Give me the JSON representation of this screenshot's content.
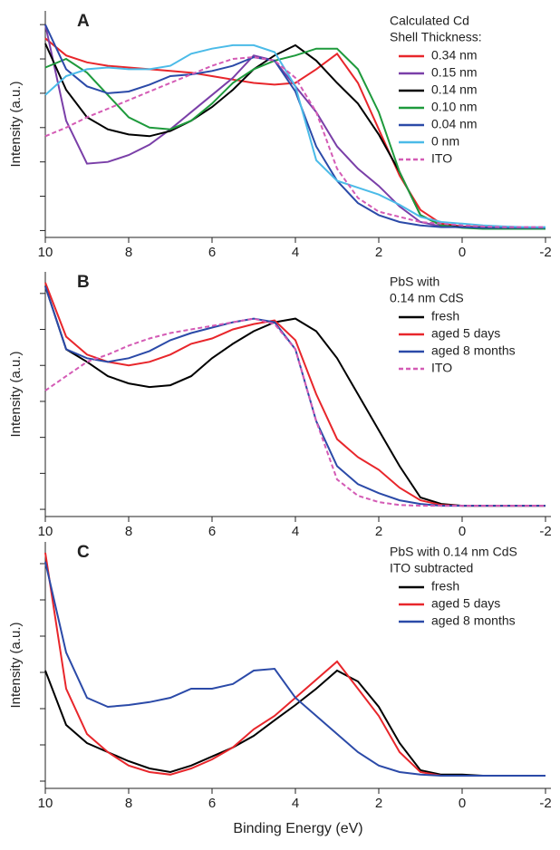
{
  "chart_data": [
    {
      "type": "line",
      "title": "A",
      "y_label": "Intensity (a.u.)",
      "legend_title": [
        "Calculated Cd",
        "Shell  Thickness:"
      ],
      "x": [
        10,
        9.5,
        9,
        8.5,
        8,
        7.5,
        7,
        6.5,
        6,
        5.5,
        5,
        4.5,
        4,
        3.5,
        3,
        2.5,
        2,
        1.5,
        1,
        0.5,
        0,
        -0.5,
        -1,
        -1.5,
        -2
      ],
      "xlim": [
        10,
        -2
      ],
      "xticks": [
        10,
        8,
        6,
        4,
        2,
        0,
        -2
      ],
      "ylim": [
        -0.2,
        6.4
      ],
      "yticks": [
        0,
        1,
        2,
        3,
        4,
        5,
        6
      ],
      "ytick_labels": false,
      "series": [
        {
          "name": "0.34 nm",
          "color": "#e8262b",
          "values": [
            5.6,
            5.1,
            4.9,
            4.8,
            4.75,
            4.7,
            4.65,
            4.6,
            4.5,
            4.4,
            4.3,
            4.25,
            4.3,
            4.7,
            5.15,
            4.3,
            2.95,
            1.6,
            0.6,
            0.2,
            0.12,
            0.1,
            0.08,
            0.08,
            0.08
          ]
        },
        {
          "name": "0.15 nm",
          "color": "#7a3fa8",
          "values": [
            6.0,
            3.2,
            1.95,
            2.0,
            2.2,
            2.5,
            2.95,
            3.45,
            3.95,
            4.45,
            5.1,
            4.95,
            4.2,
            3.45,
            2.45,
            1.8,
            1.3,
            0.7,
            0.25,
            0.12,
            0.1,
            0.08,
            0.08,
            0.08,
            0.08
          ]
        },
        {
          "name": "0.14 nm",
          "color": "#000000",
          "values": [
            5.45,
            4.1,
            3.3,
            2.95,
            2.8,
            2.75,
            2.9,
            3.2,
            3.6,
            4.1,
            4.7,
            5.1,
            5.4,
            4.95,
            4.3,
            3.7,
            2.8,
            1.7,
            0.45,
            0.15,
            0.1,
            0.08,
            0.08,
            0.08,
            0.08
          ]
        },
        {
          "name": "0.10 nm",
          "color": "#1e9a3c",
          "values": [
            4.75,
            5.0,
            4.6,
            3.95,
            3.3,
            3.0,
            2.95,
            3.2,
            3.7,
            4.3,
            4.7,
            4.95,
            5.1,
            5.3,
            5.3,
            4.7,
            3.45,
            1.7,
            0.45,
            0.15,
            0.08,
            0.05,
            0.05,
            0.05,
            0.05
          ]
        },
        {
          "name": "0.04 nm",
          "color": "#2b4aa8",
          "values": [
            6.0,
            4.7,
            4.2,
            4.0,
            4.05,
            4.25,
            4.5,
            4.55,
            4.65,
            4.8,
            5.05,
            4.95,
            4.05,
            2.45,
            1.45,
            0.8,
            0.45,
            0.25,
            0.15,
            0.1,
            0.1,
            0.08,
            0.08,
            0.08,
            0.08
          ]
        },
        {
          "name": "0 nm",
          "color": "#4bbbe8",
          "values": [
            3.95,
            4.5,
            4.7,
            4.75,
            4.7,
            4.7,
            4.8,
            5.15,
            5.3,
            5.4,
            5.4,
            5.2,
            4.2,
            2.05,
            1.45,
            1.25,
            1.05,
            0.75,
            0.4,
            0.25,
            0.2,
            0.15,
            0.12,
            0.1,
            0.1
          ]
        },
        {
          "name": "ITO",
          "color": "#d45bb5",
          "dash": true,
          "values": [
            2.75,
            3.0,
            3.3,
            3.55,
            3.8,
            4.05,
            4.3,
            4.55,
            4.8,
            5.0,
            5.05,
            4.95,
            4.45,
            3.45,
            1.8,
            0.95,
            0.55,
            0.4,
            0.25,
            0.2,
            0.15,
            0.12,
            0.1,
            0.1,
            0.1
          ]
        }
      ]
    },
    {
      "type": "line",
      "title": "B",
      "y_label": "Intensity (a.u.)",
      "legend_title": [
        "PbS with",
        "0.14 nm CdS"
      ],
      "x": [
        10,
        9.5,
        9,
        8.5,
        8,
        7.5,
        7,
        6.5,
        6,
        5.5,
        5,
        4.5,
        4,
        3.5,
        3,
        2.5,
        2,
        1.5,
        1,
        0.5,
        0,
        -0.5,
        -1,
        -1.5,
        -2
      ],
      "xlim": [
        10,
        -2
      ],
      "xticks": [
        10,
        8,
        6,
        4,
        2,
        0,
        -2
      ],
      "ylim": [
        -0.2,
        6.6
      ],
      "yticks": [
        0,
        1,
        2,
        3,
        4,
        5,
        6
      ],
      "ytick_labels": false,
      "series": [
        {
          "name": "fresh",
          "color": "#000000",
          "values": [
            6.2,
            4.45,
            4.1,
            3.7,
            3.5,
            3.4,
            3.45,
            3.7,
            4.2,
            4.6,
            4.95,
            5.2,
            5.3,
            4.95,
            4.2,
            3.2,
            2.2,
            1.2,
            0.33,
            0.15,
            0.1,
            0.1,
            0.1,
            0.1,
            0.1
          ]
        },
        {
          "name": "aged 5 days",
          "color": "#e8262b",
          "values": [
            6.3,
            4.8,
            4.3,
            4.1,
            4.0,
            4.1,
            4.3,
            4.6,
            4.75,
            5.0,
            5.15,
            5.25,
            4.7,
            3.2,
            1.95,
            1.45,
            1.1,
            0.6,
            0.25,
            0.12,
            0.1,
            0.1,
            0.1,
            0.1,
            0.1
          ]
        },
        {
          "name": "aged 8 months",
          "color": "#2b4aa8",
          "values": [
            6.2,
            4.45,
            4.2,
            4.1,
            4.2,
            4.4,
            4.7,
            4.9,
            5.05,
            5.2,
            5.3,
            5.2,
            4.45,
            2.45,
            1.2,
            0.7,
            0.45,
            0.25,
            0.15,
            0.1,
            0.1,
            0.1,
            0.1,
            0.1,
            0.1
          ]
        },
        {
          "name": "ITO",
          "color": "#d45bb5",
          "dash": true,
          "values": [
            3.3,
            3.7,
            4.1,
            4.3,
            4.55,
            4.75,
            4.9,
            5.0,
            5.1,
            5.2,
            5.3,
            5.15,
            4.45,
            2.45,
            0.83,
            0.38,
            0.2,
            0.12,
            0.1,
            0.1,
            0.1,
            0.1,
            0.1,
            0.1,
            0.1
          ]
        }
      ]
    },
    {
      "type": "line",
      "title": "C",
      "y_label": "Intensity (a.u.)",
      "x_label": "Binding Energy (eV)",
      "legend_title": [
        "PbS with 0.14 nm CdS",
        "ITO subtracted"
      ],
      "x": [
        10,
        9.5,
        9,
        8.5,
        8,
        7.5,
        7,
        6.5,
        6,
        5.5,
        5,
        4.5,
        4,
        3.5,
        3,
        2.5,
        2,
        1.5,
        1,
        0.5,
        0,
        -0.5,
        -1,
        -1.5,
        -2
      ],
      "xlim": [
        10,
        -2
      ],
      "xticks": [
        10,
        8,
        6,
        4,
        2,
        0,
        -2
      ],
      "ylim": [
        -0.2,
        6.6
      ],
      "yticks": [
        0,
        1,
        2,
        3,
        4,
        5,
        6
      ],
      "ytick_labels": false,
      "series": [
        {
          "name": "fresh",
          "color": "#000000",
          "values": [
            3.05,
            1.55,
            1.05,
            0.8,
            0.55,
            0.35,
            0.25,
            0.43,
            0.68,
            0.93,
            1.25,
            1.68,
            2.1,
            2.55,
            3.05,
            2.75,
            2.05,
            1.05,
            0.3,
            0.18,
            0.18,
            0.15,
            0.15,
            0.15,
            0.15
          ]
        },
        {
          "name": "aged 5 days",
          "color": "#e8262b",
          "values": [
            6.3,
            2.55,
            1.3,
            0.8,
            0.43,
            0.25,
            0.18,
            0.35,
            0.6,
            0.93,
            1.43,
            1.8,
            2.3,
            2.8,
            3.3,
            2.55,
            1.8,
            0.8,
            0.25,
            0.15,
            0.15,
            0.15,
            0.15,
            0.15,
            0.15
          ]
        },
        {
          "name": "aged 8 months",
          "color": "#2b4aa8",
          "values": [
            6.05,
            3.55,
            2.3,
            2.05,
            2.1,
            2.18,
            2.3,
            2.55,
            2.55,
            2.68,
            3.05,
            3.1,
            2.3,
            1.8,
            1.3,
            0.8,
            0.43,
            0.25,
            0.18,
            0.15,
            0.15,
            0.15,
            0.15,
            0.15,
            0.15
          ]
        }
      ]
    }
  ]
}
